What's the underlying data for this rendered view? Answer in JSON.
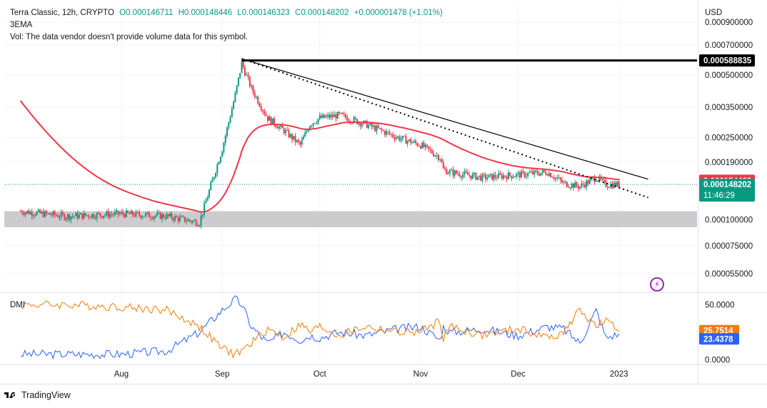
{
  "header": {
    "symbol": "Terra Classic, 12h, CRYPTO",
    "open": "O0.000146711",
    "high": "H0.000148446",
    "low": "L0.000146323",
    "close": "C0.000148202",
    "change": "+0.000001478 (+1.01%)",
    "indicator": "3EMA",
    "vol_note": "Vol: The data vendor doesn't provide volume data for this symbol."
  },
  "price_scale": {
    "currency": "USD",
    "ticks": [
      "0.000900000",
      "0.000700000",
      "0.000500000",
      "0.000350000",
      "0.000250000",
      "0.000190000",
      "0.000100000",
      "0.000075000",
      "0.000055000"
    ],
    "labels": {
      "resistance": "0.000588835",
      "ema": "0.000154468",
      "last": "0.000148202",
      "countdown": "11:46:29"
    }
  },
  "dmi": {
    "title": "DMI",
    "ticks": [
      "50.0000",
      "0.0000"
    ],
    "labels": {
      "orange": "25.7514",
      "blue": "23.4378"
    }
  },
  "time_axis": [
    "Aug",
    "Sep",
    "Oct",
    "Nov",
    "Dec",
    "2023"
  ],
  "footer": {
    "brand": "TradingView"
  },
  "colors": {
    "up": "#089981",
    "down": "#f23645",
    "ema": "#f23645",
    "plus_di": "#2962ff",
    "minus_di": "#f57c00",
    "zone": "#c9c9cc",
    "last_price": "#089981"
  },
  "chart_data": [
    {
      "type": "candlestick",
      "title": "Terra Classic, 12h, CRYPTO",
      "y_scale": "log",
      "ylim": [
        4.5e-05,
        0.0011
      ],
      "x": [
        "2022-07-01",
        "2022-07-15",
        "2022-08-01",
        "2022-08-15",
        "2022-08-25",
        "2022-09-01",
        "2022-09-05",
        "2022-09-07",
        "2022-09-10",
        "2022-09-15",
        "2022-09-20",
        "2022-09-25",
        "2022-09-28",
        "2022-10-01",
        "2022-10-07",
        "2022-10-15",
        "2022-10-25",
        "2022-11-01",
        "2022-11-07",
        "2022-11-08",
        "2022-11-10",
        "2022-11-20",
        "2022-12-01",
        "2022-12-10",
        "2022-12-15",
        "2022-12-20",
        "2022-12-25",
        "2022-12-28",
        "2023-01-01"
      ],
      "close": [
        0.00011,
        0.000104,
        0.000107,
        0.000104,
        9.7e-05,
        0.00022,
        0.0004,
        0.00057,
        0.00043,
        0.00031,
        0.00027,
        0.00023,
        0.00029,
        0.00031,
        0.00032,
        0.00029,
        0.00025,
        0.00023,
        0.0002,
        0.000175,
        0.00017,
        0.00016,
        0.000165,
        0.00017,
        0.00015,
        0.000145,
        0.00016,
        0.000148,
        0.000148
      ],
      "series": [
        {
          "name": "3EMA",
          "kind": "line"
        }
      ],
      "lines": [
        {
          "kind": "horizontal",
          "value": 0.000588835
        },
        {
          "kind": "trend",
          "from": [
            "2022-09-07",
            0.0006
          ],
          "to": [
            "2023-01-10",
            0.000157
          ]
        },
        {
          "kind": "trend_dotted",
          "from": [
            "2022-09-07",
            0.0006
          ],
          "to": [
            "2023-01-10",
            0.000128
          ]
        }
      ],
      "zone": [
        9.2e-05,
        0.00011
      ],
      "last_price": 0.000148202
    },
    {
      "type": "line",
      "title": "DMI",
      "ylim": [
        -3,
        60
      ],
      "series": [
        {
          "name": "+DI",
          "values": [
            5,
            5,
            5,
            8,
            25,
            45,
            55,
            50,
            30,
            15,
            25,
            18,
            22,
            20,
            25,
            22,
            28,
            30,
            18,
            30,
            25,
            28,
            22,
            30,
            28,
            15,
            45,
            20,
            23.4378
          ]
        },
        {
          "name": "-DI",
          "values": [
            50,
            50,
            48,
            45,
            30,
            10,
            5,
            8,
            15,
            28,
            20,
            32,
            25,
            30,
            22,
            30,
            25,
            25,
            35,
            20,
            30,
            22,
            28,
            20,
            25,
            45,
            30,
            35,
            25.7514
          ]
        }
      ]
    }
  ]
}
